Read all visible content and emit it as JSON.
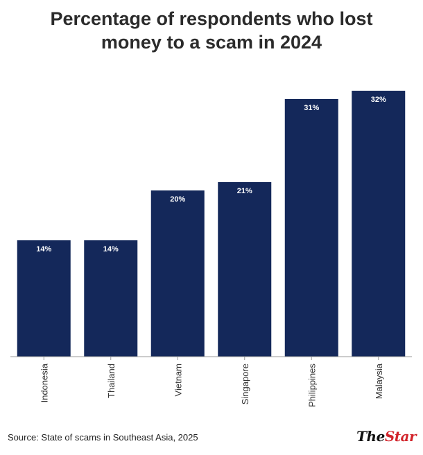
{
  "chart_data": {
    "type": "bar",
    "title": "Percentage of respondents who lost money to a scam in 2024",
    "categories": [
      "Indonesia",
      "Thailand",
      "Vietnam",
      "Singapore",
      "Philippines",
      "Malaysia"
    ],
    "values": [
      14,
      14,
      20,
      21,
      31,
      32
    ],
    "data_labels": [
      "14%",
      "14%",
      "20%",
      "21%",
      "31%",
      "32%"
    ],
    "ylim": [
      0,
      32
    ],
    "xlabel": "",
    "ylabel": "",
    "grid": false,
    "legend": "none",
    "bar_color": "#14285a",
    "label_color": "#ffffff"
  },
  "source": "Source: State of scams in Southeast Asia, 2025",
  "logo": {
    "the": "The",
    "star": "Star",
    "brand_color": "#d2232a"
  }
}
